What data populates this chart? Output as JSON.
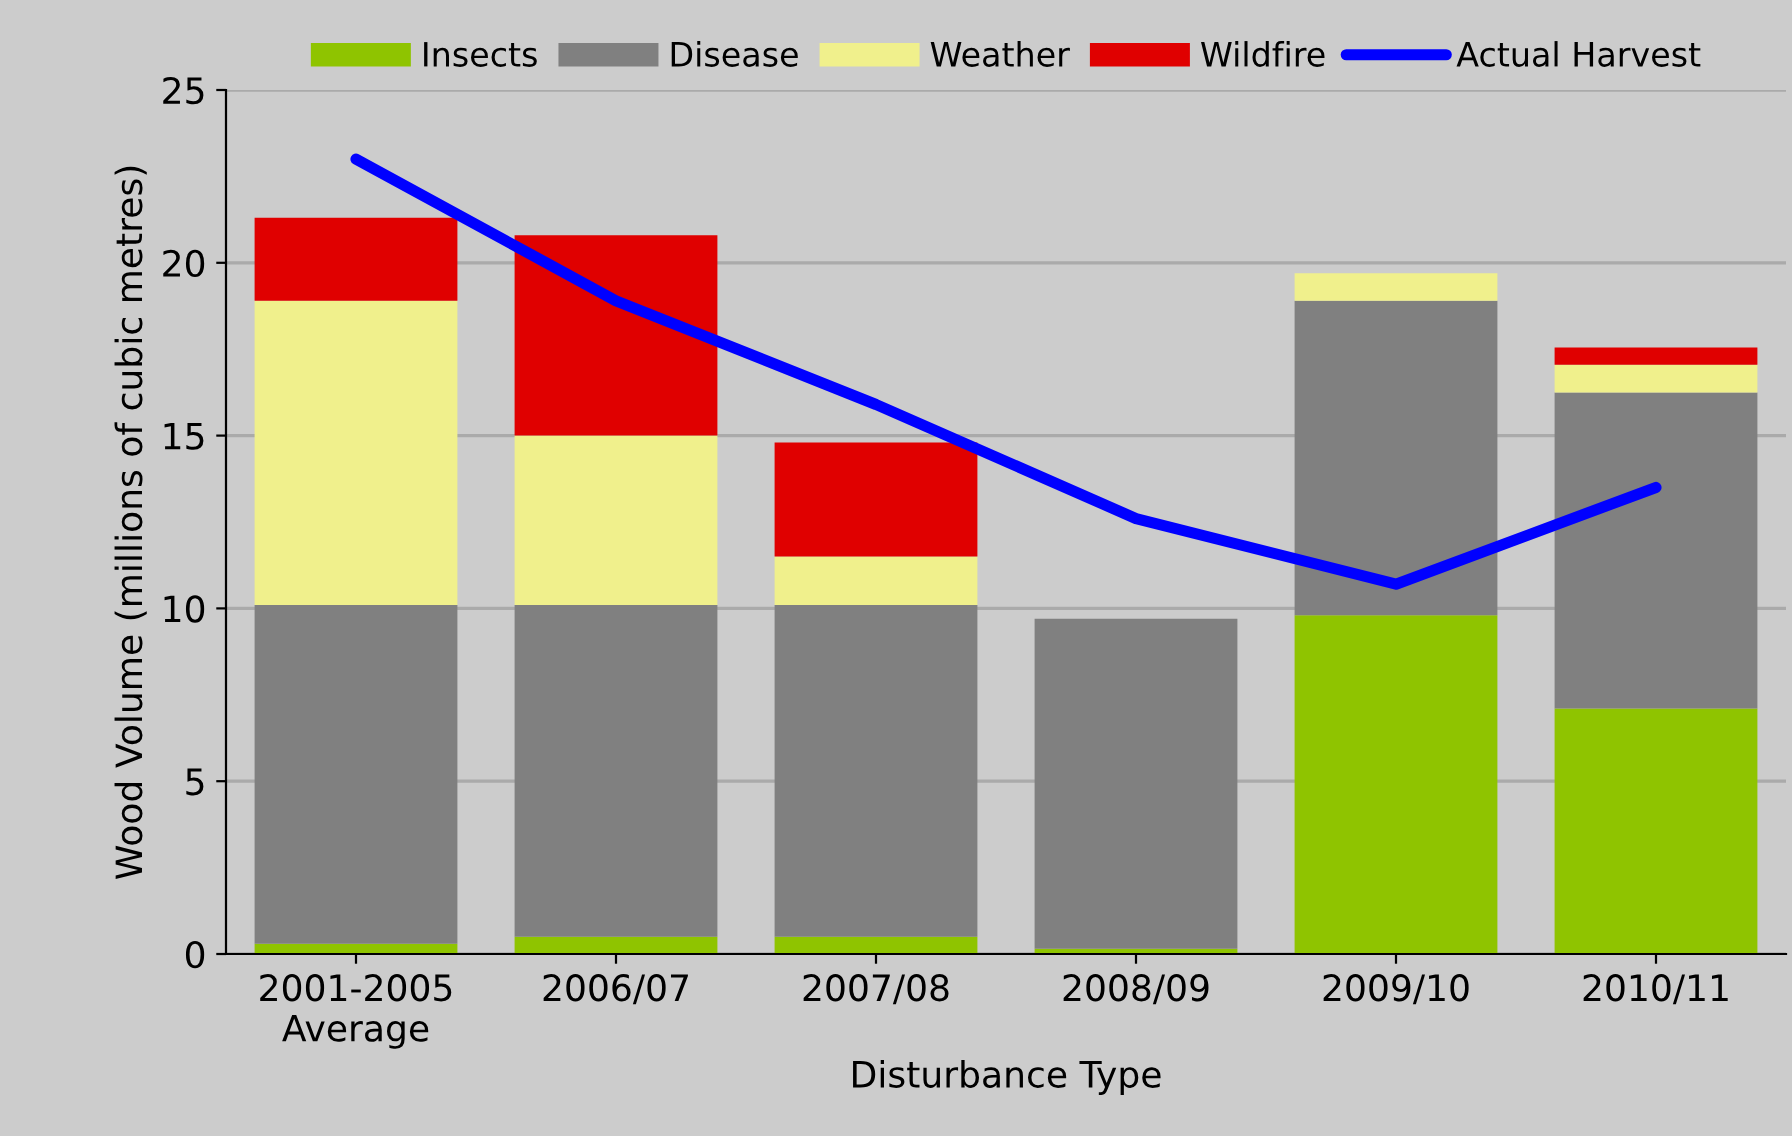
{
  "chart_data": {
    "type": "bar",
    "stacked": true,
    "xlabel": "Disturbance Type",
    "ylabel": "Wood Volume (millions of cubic metres)",
    "categories": [
      "2001-2005\nAverage",
      "2006/07",
      "2007/08",
      "2008/09",
      "2009/10",
      "2010/11"
    ],
    "series": [
      {
        "name": "Insects",
        "color": "#8fc400",
        "values": [
          0.3,
          0.5,
          0.5,
          0.15,
          9.8,
          7.1
        ]
      },
      {
        "name": "Disease",
        "color": "#808080",
        "values": [
          9.8,
          9.6,
          9.6,
          9.55,
          9.1,
          9.15
        ]
      },
      {
        "name": "Weather",
        "color": "#f0f08c",
        "values": [
          8.8,
          4.9,
          1.4,
          0,
          0.8,
          0.8
        ]
      },
      {
        "name": "Wildfire",
        "color": "#e00000",
        "values": [
          2.4,
          5.8,
          3.3,
          0,
          0,
          0.5
        ]
      },
      {
        "name": "Actual Harvest",
        "type": "line",
        "color": "#0000ff",
        "values": [
          23.0,
          18.9,
          15.9,
          12.6,
          10.7,
          13.5
        ]
      }
    ],
    "ylim": [
      0,
      25
    ],
    "yticks": [
      0,
      5,
      10,
      15,
      20,
      25
    ],
    "grid": "y",
    "legend": "top",
    "marker": "none",
    "line_style": "solid"
  }
}
